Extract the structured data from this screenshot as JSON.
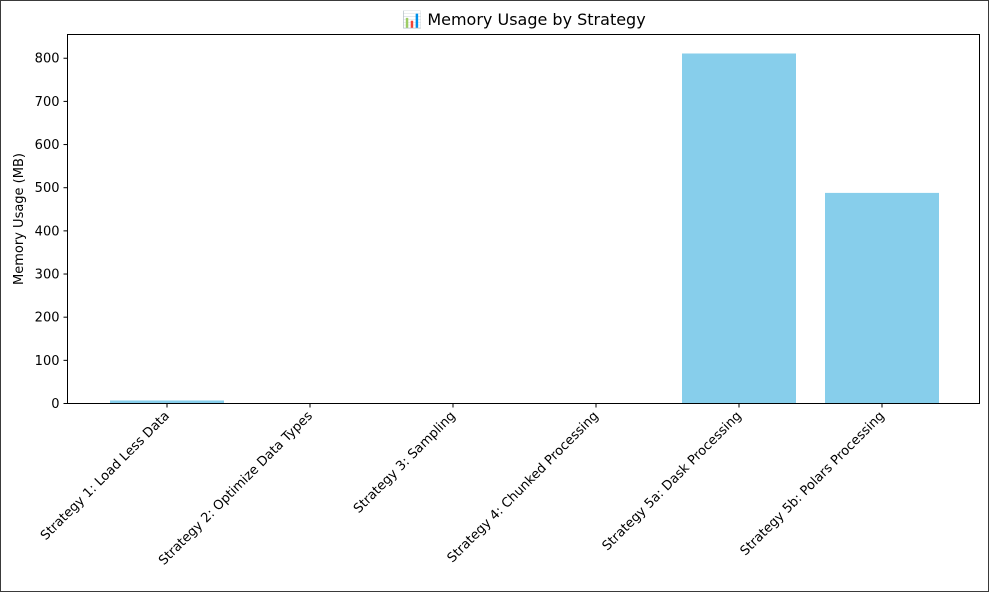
{
  "chart_data": {
    "type": "bar",
    "title": "📊 Memory Usage by Strategy",
    "xlabel": "",
    "ylabel": "Memory Usage (MB)",
    "categories": [
      "Strategy 1: Load Less Data",
      "Strategy 2: Optimize Data Types",
      "Strategy 3: Sampling",
      "Strategy 4: Chunked Processing",
      "Strategy 5a: Dask Processing",
      "Strategy 5b: Polars Processing"
    ],
    "values": [
      7,
      0.5,
      0.3,
      0.3,
      811,
      488
    ],
    "ylim": [
      0,
      855
    ],
    "yticks": [
      0,
      100,
      200,
      300,
      400,
      500,
      600,
      700,
      800
    ],
    "bar_color": "#87ceeb",
    "grid": false,
    "legend": "none"
  }
}
